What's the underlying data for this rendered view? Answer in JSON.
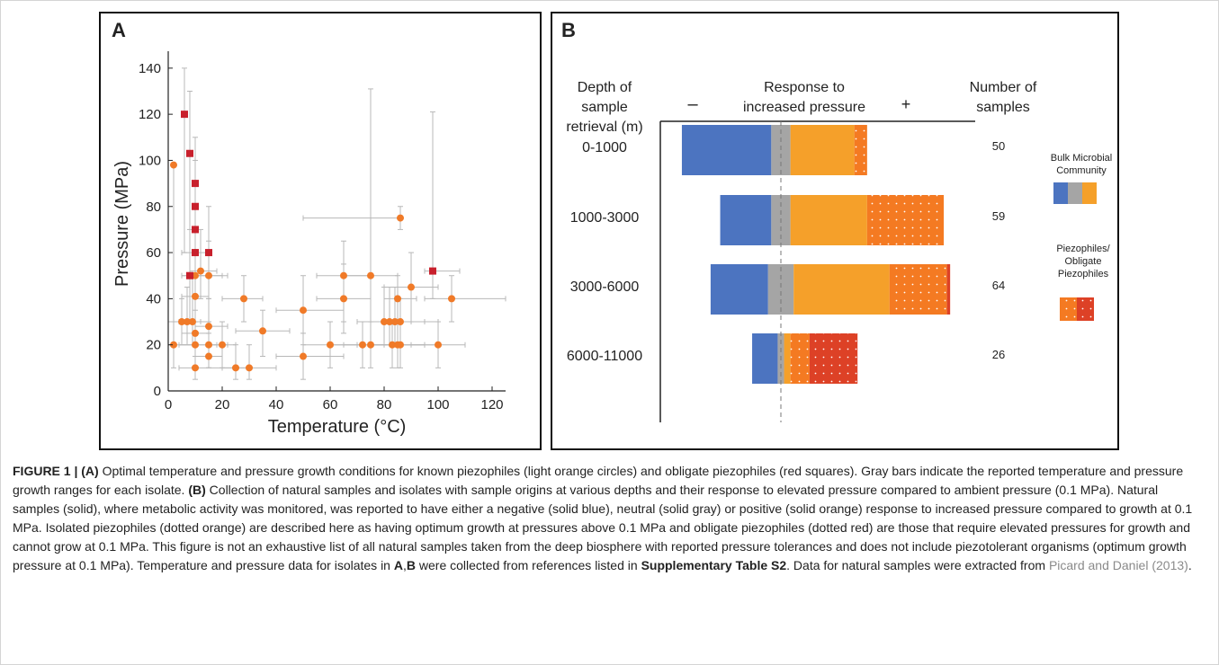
{
  "panel_a": {
    "letter": "A",
    "chart_data": {
      "type": "scatter",
      "xlabel": "Temperature (°C)",
      "ylabel": "Pressure (MPa)",
      "xlim": [
        0,
        125
      ],
      "ylim": [
        0,
        145
      ],
      "xticks": [
        "0",
        "20",
        "40",
        "60",
        "80",
        "100",
        "120"
      ],
      "yticks": [
        "0",
        "20",
        "40",
        "60",
        "80",
        "100",
        "120",
        "140"
      ],
      "grid": false,
      "series": [
        {
          "marker": "circle",
          "color": "#f07a28",
          "points": [
            {
              "x": 2,
              "y": 98,
              "xr": [
                2,
                2
              ],
              "yr": [
                20,
                98
              ]
            },
            {
              "x": 2,
              "y": 20,
              "xr": [
                0,
                10
              ],
              "yr": [
                10,
                30
              ]
            },
            {
              "x": 5,
              "y": 30,
              "xr": [
                0,
                12
              ],
              "yr": [
                20,
                40
              ]
            },
            {
              "x": 7,
              "y": 30,
              "xr": [
                4,
                12
              ],
              "yr": [
                20,
                45
              ]
            },
            {
              "x": 9,
              "y": 30,
              "xr": [
                5,
                15
              ],
              "yr": [
                20,
                50
              ]
            },
            {
              "x": 10,
              "y": 41,
              "xr": [
                5,
                15
              ],
              "yr": [
                30,
                50
              ]
            },
            {
              "x": 10,
              "y": 25,
              "xr": [
                5,
                15
              ],
              "yr": [
                15,
                35
              ]
            },
            {
              "x": 10,
              "y": 20,
              "xr": [
                4,
                18
              ],
              "yr": [
                10,
                30
              ]
            },
            {
              "x": 10,
              "y": 10,
              "xr": [
                4,
                20
              ],
              "yr": [
                5,
                20
              ]
            },
            {
              "x": 10,
              "y": 60,
              "xr": [
                5,
                15
              ],
              "yr": [
                40,
                90
              ]
            },
            {
              "x": 10,
              "y": 50,
              "xr": [
                5,
                22
              ],
              "yr": [
                30,
                60
              ]
            },
            {
              "x": 12,
              "y": 52,
              "xr": [
                8,
                18
              ],
              "yr": [
                40,
                70
              ]
            },
            {
              "x": 15,
              "y": 50,
              "xr": [
                10,
                20
              ],
              "yr": [
                30,
                65
              ]
            },
            {
              "x": 15,
              "y": 28,
              "xr": [
                10,
                22
              ],
              "yr": [
                20,
                40
              ]
            },
            {
              "x": 15,
              "y": 20,
              "xr": [
                10,
                22
              ],
              "yr": [
                10,
                30
              ]
            },
            {
              "x": 15,
              "y": 15,
              "xr": [
                10,
                20
              ],
              "yr": [
                10,
                25
              ]
            },
            {
              "x": 20,
              "y": 20,
              "xr": [
                15,
                25
              ],
              "yr": [
                10,
                30
              ]
            },
            {
              "x": 25,
              "y": 10,
              "xr": [
                20,
                30
              ],
              "yr": [
                5,
                20
              ]
            },
            {
              "x": 28,
              "y": 40,
              "xr": [
                20,
                35
              ],
              "yr": [
                30,
                50
              ]
            },
            {
              "x": 30,
              "y": 10,
              "xr": [
                20,
                40
              ],
              "yr": [
                5,
                20
              ]
            },
            {
              "x": 35,
              "y": 26,
              "xr": [
                25,
                45
              ],
              "yr": [
                15,
                35
              ]
            },
            {
              "x": 50,
              "y": 35,
              "xr": [
                40,
                65
              ],
              "yr": [
                20,
                50
              ]
            },
            {
              "x": 50,
              "y": 15,
              "xr": [
                40,
                65
              ],
              "yr": [
                5,
                25
              ]
            },
            {
              "x": 60,
              "y": 20,
              "xr": [
                50,
                70
              ],
              "yr": [
                10,
                30
              ]
            },
            {
              "x": 65,
              "y": 50,
              "xr": [
                55,
                75
              ],
              "yr": [
                30,
                65
              ]
            },
            {
              "x": 65,
              "y": 40,
              "xr": [
                55,
                75
              ],
              "yr": [
                25,
                55
              ]
            },
            {
              "x": 72,
              "y": 20,
              "xr": [
                60,
                80
              ],
              "yr": [
                10,
                30
              ]
            },
            {
              "x": 75,
              "y": 50,
              "xr": [
                65,
                85
              ],
              "yr": [
                30,
                131
              ]
            },
            {
              "x": 75,
              "y": 20,
              "xr": [
                65,
                85
              ],
              "yr": [
                10,
                30
              ]
            },
            {
              "x": 80,
              "y": 30,
              "xr": [
                70,
                90
              ],
              "yr": [
                20,
                45
              ]
            },
            {
              "x": 82,
              "y": 30,
              "xr": [
                70,
                95
              ],
              "yr": [
                20,
                45
              ]
            },
            {
              "x": 83,
              "y": 20,
              "xr": [
                70,
                95
              ],
              "yr": [
                10,
                30
              ]
            },
            {
              "x": 84,
              "y": 30,
              "xr": [
                75,
                95
              ],
              "yr": [
                20,
                45
              ]
            },
            {
              "x": 85,
              "y": 20,
              "xr": [
                75,
                95
              ],
              "yr": [
                10,
                30
              ]
            },
            {
              "x": 86,
              "y": 75,
              "xr": [
                50,
                86
              ],
              "yr": [
                70,
                80
              ]
            },
            {
              "x": 85,
              "y": 40,
              "xr": [
                80,
                92
              ],
              "yr": [
                30,
                50
              ]
            },
            {
              "x": 86,
              "y": 30,
              "xr": [
                75,
                100
              ],
              "yr": [
                20,
                40
              ]
            },
            {
              "x": 86,
              "y": 20,
              "xr": [
                75,
                100
              ],
              "yr": [
                10,
                30
              ]
            },
            {
              "x": 90,
              "y": 45,
              "xr": [
                80,
                100
              ],
              "yr": [
                30,
                60
              ]
            },
            {
              "x": 100,
              "y": 20,
              "xr": [
                90,
                110
              ],
              "yr": [
                10,
                30
              ]
            },
            {
              "x": 105,
              "y": 40,
              "xr": [
                95,
                125
              ],
              "yr": [
                30,
                50
              ]
            }
          ]
        },
        {
          "marker": "square",
          "color": "#c8202c",
          "points": [
            {
              "x": 6,
              "y": 120,
              "xr": [
                6,
                6
              ],
              "yr": [
                60,
                140
              ]
            },
            {
              "x": 8,
              "y": 103,
              "xr": [
                8,
                8
              ],
              "yr": [
                50,
                130
              ]
            },
            {
              "x": 10,
              "y": 90,
              "xr": [
                10,
                10
              ],
              "yr": [
                70,
                110
              ]
            },
            {
              "x": 10,
              "y": 80,
              "xr": [
                10,
                10
              ],
              "yr": [
                60,
                100
              ]
            },
            {
              "x": 10,
              "y": 70,
              "xr": [
                10,
                10
              ],
              "yr": [
                50,
                90
              ]
            },
            {
              "x": 10,
              "y": 60,
              "xr": [
                10,
                10
              ],
              "yr": [
                40,
                80
              ]
            },
            {
              "x": 8,
              "y": 50,
              "xr": [
                5,
                12
              ],
              "yr": [
                30,
                70
              ]
            },
            {
              "x": 15,
              "y": 60,
              "xr": [
                15,
                15
              ],
              "yr": [
                40,
                80
              ]
            },
            {
              "x": 98,
              "y": 52,
              "xr": [
                95,
                108
              ],
              "yr": [
                40,
                121
              ]
            }
          ]
        }
      ]
    }
  },
  "panel_b": {
    "letter": "B",
    "header_depth": [
      "Depth of",
      "sample",
      "retrieval (m)"
    ],
    "header_minus": "–",
    "header_response": [
      "Response to",
      "increased pressure"
    ],
    "header_plus": "+",
    "header_samples": [
      "Number of",
      "samples"
    ],
    "chart_data": {
      "type": "bar",
      "orientation": "horizontal",
      "stacked": true,
      "diverging_at": 0,
      "categories": [
        "0-1000",
        "1000-3000",
        "3000-6000",
        "6000-11000"
      ],
      "counts": [
        "50",
        "59",
        "64",
        "26"
      ],
      "series": [
        {
          "name": "negative",
          "color": "#4c74c0",
          "values": [
            14,
            8,
            9,
            4
          ]
        },
        {
          "name": "neutral",
          "color": "#a5a5a5",
          "values": [
            3,
            3,
            4,
            1
          ]
        },
        {
          "name": "positive",
          "color": "#f5a02a",
          "values": [
            10,
            12,
            15,
            1
          ]
        },
        {
          "name": "piezophiles",
          "color": "#f47a22",
          "pattern": "dotted",
          "values": [
            2,
            12,
            9,
            3
          ]
        },
        {
          "name": "obligate",
          "color": "#dd4126",
          "pattern": "dotted",
          "values": [
            0,
            0,
            0.5,
            7.5
          ]
        }
      ],
      "legend": [
        {
          "label": "Bulk Microbial Community",
          "swatches": [
            "#4c74c0",
            "#a5a5a5",
            "#f5a02a"
          ]
        },
        {
          "label": "Piezophiles/ Obligate Piezophiles",
          "swatches": [
            "#f47a22",
            "#dd4126"
          ]
        }
      ],
      "legend_placement": "right"
    }
  },
  "caption": {
    "figure_label": "FIGURE 1 | ",
    "a_label": "(A)",
    "a_text": " Optimal temperature and pressure growth conditions for known piezophiles (light orange circles) and obligate piezophiles (red squares). Gray bars indicate the reported temperature and pressure growth ranges for each isolate. ",
    "b_label": "(B)",
    "b_text": " Collection of natural samples and isolates with sample origins at various depths and their response to elevated pressure compared to ambient pressure (0.1 MPa). Natural samples (solid), where metabolic activity was monitored, was reported to have either a negative (solid blue), neutral (solid gray) or positive (solid orange) response to increased pressure compared to growth at 0.1 MPa. Isolated piezophiles (dotted orange) are described here as having optimum growth at pressures above 0.1 MPa and obligate piezophiles (dotted red) are those that require elevated pressures for growth and cannot grow at 0.1 MPa. This figure is not an exhaustive list of all natural samples taken from the deep biosphere with reported pressure tolerances and does not include piezotolerant organisms (optimum growth pressure at 0.1 MPa). Temperature and pressure data for isolates in ",
    "ab_label_a": "A",
    "ab_comma": ",",
    "ab_label_b": "B",
    "text_2": " were collected from references listed in ",
    "supp_label": "Supplementary Table S2",
    "text_3": ". Data for natural samples were extracted from ",
    "ref_link": "Picard and Daniel (2013)",
    "text_4": "."
  }
}
